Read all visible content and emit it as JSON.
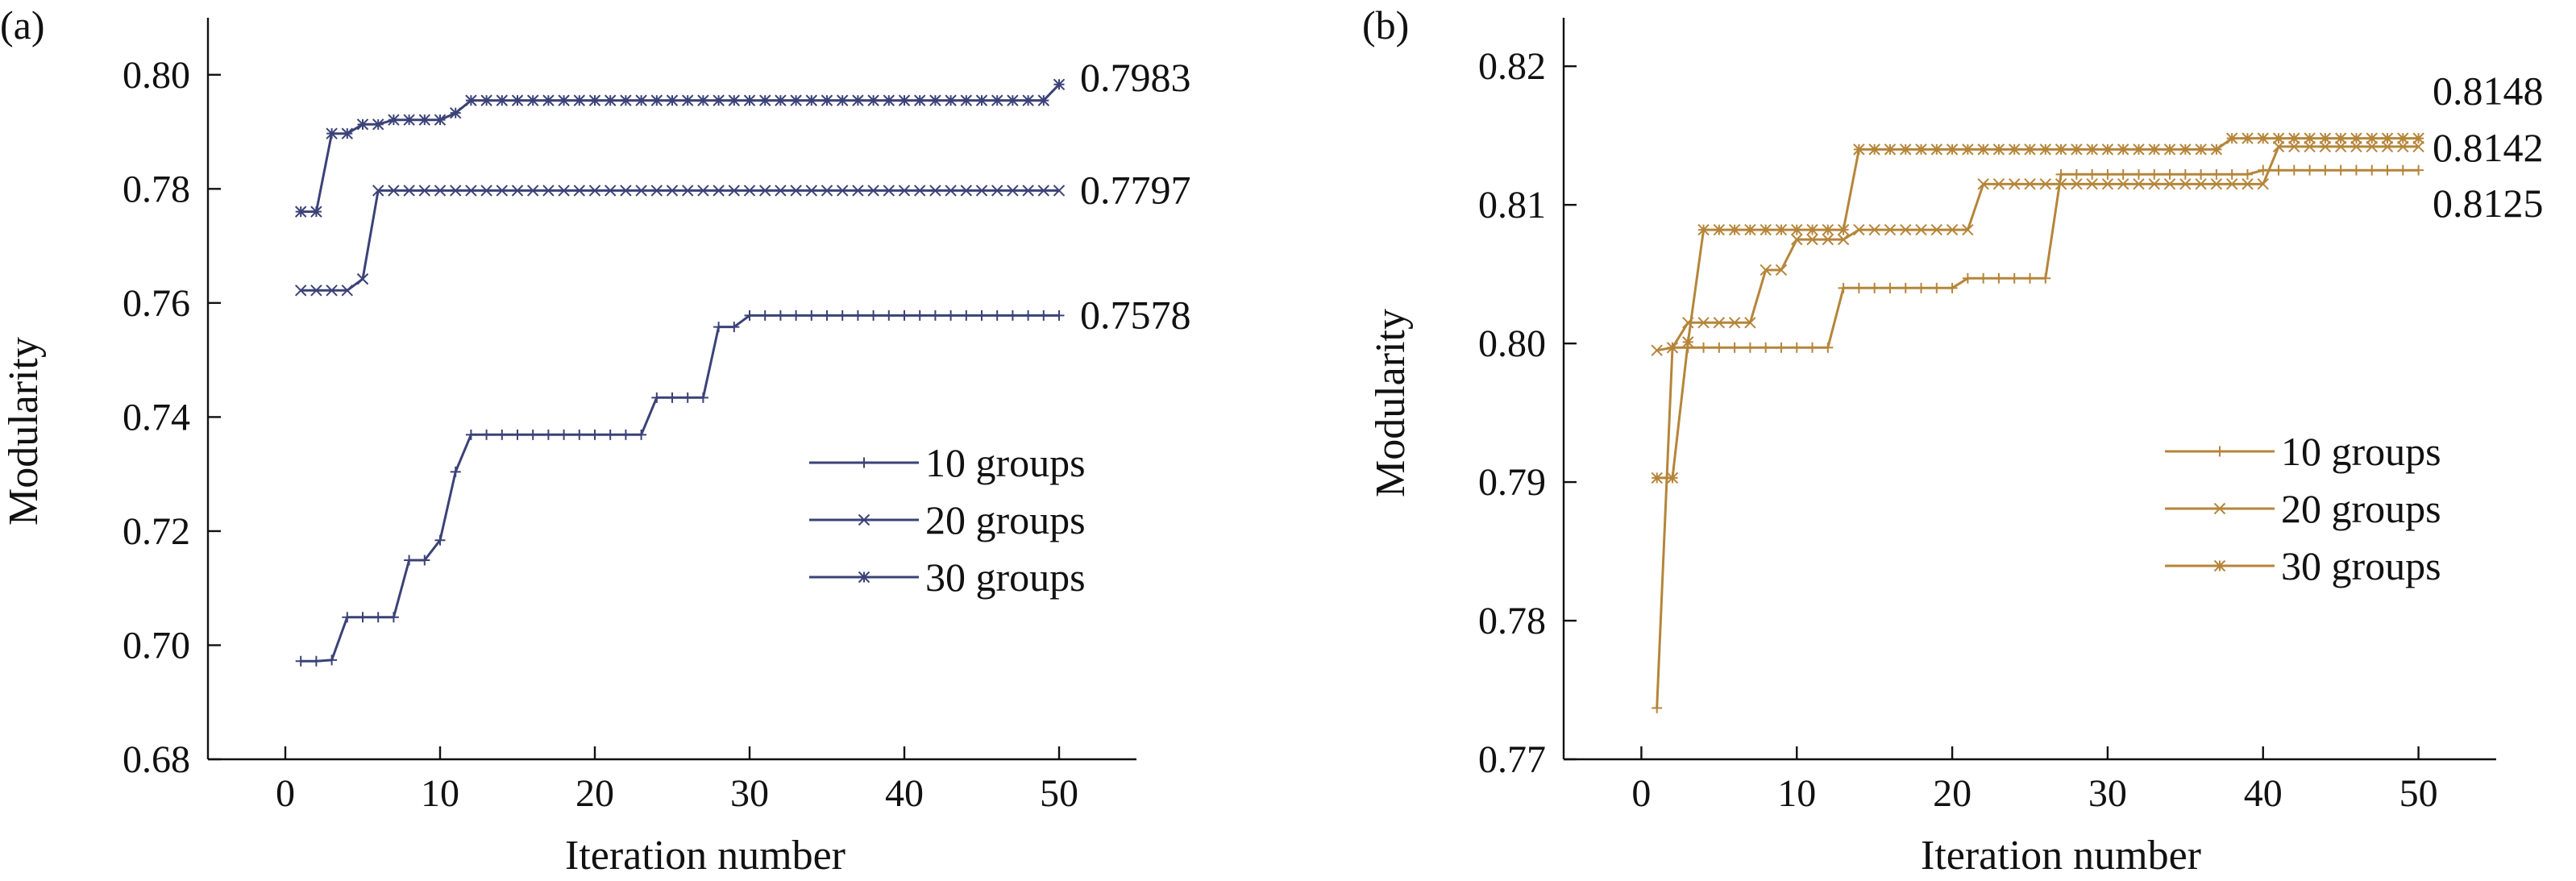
{
  "chart_data": [
    {
      "panel_label": "(a)",
      "type": "line",
      "xlabel": "Iteration number",
      "ylabel": "Modularity",
      "xlim": [
        -5,
        55
      ],
      "ylim": [
        0.68,
        0.81
      ],
      "xticks": [
        0,
        10,
        20,
        30,
        40,
        50
      ],
      "yticks": [
        0.68,
        0.7,
        0.72,
        0.74,
        0.76,
        0.78,
        0.8
      ],
      "ytick_labels": [
        "0.68",
        "0.70",
        "0.72",
        "0.74",
        "0.76",
        "0.78",
        "0.80"
      ],
      "color": "#3b4277",
      "grid": false,
      "legend_position": "lower-right",
      "series": [
        {
          "name": "10 groups",
          "marker": "plus",
          "x": [
            1,
            2,
            3,
            4,
            5,
            6,
            7,
            8,
            9,
            10,
            11,
            12,
            13,
            14,
            15,
            16,
            17,
            18,
            19,
            20,
            21,
            22,
            23,
            24,
            25,
            26,
            27,
            28,
            29,
            30,
            31,
            32,
            33,
            34,
            35,
            36,
            37,
            38,
            39,
            40,
            41,
            42,
            43,
            44,
            45,
            46,
            47,
            48,
            49,
            50
          ],
          "y": [
            0.6972,
            0.6972,
            0.6974,
            0.7049,
            0.7049,
            0.7049,
            0.7049,
            0.7149,
            0.7149,
            0.7184,
            0.7304,
            0.7369,
            0.7369,
            0.7369,
            0.7369,
            0.7369,
            0.7369,
            0.7369,
            0.7369,
            0.7369,
            0.7369,
            0.7369,
            0.7369,
            0.7434,
            0.7434,
            0.7434,
            0.7434,
            0.7558,
            0.7558,
            0.7578,
            0.7578,
            0.7578,
            0.7578,
            0.7578,
            0.7578,
            0.7578,
            0.7578,
            0.7578,
            0.7578,
            0.7578,
            0.7578,
            0.7578,
            0.7578,
            0.7578,
            0.7578,
            0.7578,
            0.7578,
            0.7578,
            0.7578,
            0.7578
          ]
        },
        {
          "name": "20 groups",
          "marker": "x",
          "x": [
            1,
            2,
            3,
            4,
            5,
            6,
            7,
            8,
            9,
            10,
            11,
            12,
            13,
            14,
            15,
            16,
            17,
            18,
            19,
            20,
            21,
            22,
            23,
            24,
            25,
            26,
            27,
            28,
            29,
            30,
            31,
            32,
            33,
            34,
            35,
            36,
            37,
            38,
            39,
            40,
            41,
            42,
            43,
            44,
            45,
            46,
            47,
            48,
            49,
            50
          ],
          "y": [
            0.7622,
            0.7622,
            0.7622,
            0.7622,
            0.7642,
            0.7797,
            0.7797,
            0.7797,
            0.7797,
            0.7797,
            0.7797,
            0.7797,
            0.7797,
            0.7797,
            0.7797,
            0.7797,
            0.7797,
            0.7797,
            0.7797,
            0.7797,
            0.7797,
            0.7797,
            0.7797,
            0.7797,
            0.7797,
            0.7797,
            0.7797,
            0.7797,
            0.7797,
            0.7797,
            0.7797,
            0.7797,
            0.7797,
            0.7797,
            0.7797,
            0.7797,
            0.7797,
            0.7797,
            0.7797,
            0.7797,
            0.7797,
            0.7797,
            0.7797,
            0.7797,
            0.7797,
            0.7797,
            0.7797,
            0.7797,
            0.7797,
            0.7797
          ]
        },
        {
          "name": "30 groups",
          "marker": "star",
          "x": [
            1,
            2,
            3,
            4,
            5,
            6,
            7,
            8,
            9,
            10,
            11,
            12,
            13,
            14,
            15,
            16,
            17,
            18,
            19,
            20,
            21,
            22,
            23,
            24,
            25,
            26,
            27,
            28,
            29,
            30,
            31,
            32,
            33,
            34,
            35,
            36,
            37,
            38,
            39,
            40,
            41,
            42,
            43,
            44,
            45,
            46,
            47,
            48,
            49,
            50
          ],
          "y": [
            0.776,
            0.776,
            0.7897,
            0.7897,
            0.7913,
            0.7913,
            0.7921,
            0.7921,
            0.7921,
            0.7921,
            0.7933,
            0.7955,
            0.7955,
            0.7955,
            0.7955,
            0.7955,
            0.7955,
            0.7955,
            0.7955,
            0.7955,
            0.7955,
            0.7955,
            0.7955,
            0.7955,
            0.7955,
            0.7955,
            0.7955,
            0.7955,
            0.7955,
            0.7955,
            0.7955,
            0.7955,
            0.7955,
            0.7955,
            0.7955,
            0.7955,
            0.7955,
            0.7955,
            0.7955,
            0.7955,
            0.7955,
            0.7955,
            0.7955,
            0.7955,
            0.7955,
            0.7955,
            0.7955,
            0.7955,
            0.7955,
            0.7983
          ]
        }
      ],
      "annotations": [
        {
          "text": "0.7983",
          "series": 2
        },
        {
          "text": "0.7797",
          "series": 1
        },
        {
          "text": "0.7578",
          "series": 0
        }
      ]
    },
    {
      "panel_label": "(b)",
      "type": "line",
      "xlabel": "Iteration number",
      "ylabel": "Modularity",
      "xlim": [
        -5,
        55
      ],
      "ylim": [
        0.77,
        0.8235
      ],
      "xticks": [
        0,
        10,
        20,
        30,
        40,
        50
      ],
      "yticks": [
        0.77,
        0.78,
        0.79,
        0.8,
        0.81,
        0.82
      ],
      "ytick_labels": [
        "0.77",
        "0.78",
        "0.79",
        "0.80",
        "0.81",
        "0.82"
      ],
      "color": "#b5853a",
      "grid": false,
      "legend_position": "lower-right",
      "series": [
        {
          "name": "10 groups",
          "marker": "plus",
          "x": [
            1,
            2,
            3,
            4,
            5,
            6,
            7,
            8,
            9,
            10,
            11,
            12,
            13,
            14,
            15,
            16,
            17,
            18,
            19,
            20,
            21,
            22,
            23,
            24,
            25,
            26,
            27,
            28,
            29,
            30,
            31,
            32,
            33,
            34,
            35,
            36,
            37,
            38,
            39,
            40,
            41,
            42,
            43,
            44,
            45,
            46,
            47,
            48,
            49,
            50
          ],
          "y": [
            0.7737,
            0.7997,
            0.7997,
            0.7997,
            0.7997,
            0.7997,
            0.7997,
            0.7997,
            0.7997,
            0.7997,
            0.7997,
            0.7997,
            0.804,
            0.804,
            0.804,
            0.804,
            0.804,
            0.804,
            0.804,
            0.804,
            0.8047,
            0.8047,
            0.8047,
            0.8047,
            0.8047,
            0.8047,
            0.8122,
            0.8122,
            0.8122,
            0.8122,
            0.8122,
            0.8122,
            0.8122,
            0.8122,
            0.8122,
            0.8122,
            0.8122,
            0.8122,
            0.8122,
            0.8125,
            0.8125,
            0.8125,
            0.8125,
            0.8125,
            0.8125,
            0.8125,
            0.8125,
            0.8125,
            0.8125,
            0.8125
          ]
        },
        {
          "name": "20 groups",
          "marker": "x",
          "x": [
            1,
            2,
            3,
            4,
            5,
            6,
            7,
            8,
            9,
            10,
            11,
            12,
            13,
            14,
            15,
            16,
            17,
            18,
            19,
            20,
            21,
            22,
            23,
            24,
            25,
            26,
            27,
            28,
            29,
            30,
            31,
            32,
            33,
            34,
            35,
            36,
            37,
            38,
            39,
            40,
            41,
            42,
            43,
            44,
            45,
            46,
            47,
            48,
            49,
            50
          ],
          "y": [
            0.7995,
            0.7997,
            0.8015,
            0.8015,
            0.8015,
            0.8015,
            0.8015,
            0.8053,
            0.8053,
            0.8075,
            0.8075,
            0.8075,
            0.8075,
            0.8082,
            0.8082,
            0.8082,
            0.8082,
            0.8082,
            0.8082,
            0.8082,
            0.8082,
            0.8115,
            0.8115,
            0.8115,
            0.8115,
            0.8115,
            0.8115,
            0.8115,
            0.8115,
            0.8115,
            0.8115,
            0.8115,
            0.8115,
            0.8115,
            0.8115,
            0.8115,
            0.8115,
            0.8115,
            0.8115,
            0.8115,
            0.8142,
            0.8142,
            0.8142,
            0.8142,
            0.8142,
            0.8142,
            0.8142,
            0.8142,
            0.8142,
            0.8142
          ]
        },
        {
          "name": "30 groups",
          "marker": "star",
          "x": [
            1,
            2,
            3,
            4,
            5,
            6,
            7,
            8,
            9,
            10,
            11,
            12,
            13,
            14,
            15,
            16,
            17,
            18,
            19,
            20,
            21,
            22,
            23,
            24,
            25,
            26,
            27,
            28,
            29,
            30,
            31,
            32,
            33,
            34,
            35,
            36,
            37,
            38,
            39,
            40,
            41,
            42,
            43,
            44,
            45,
            46,
            47,
            48,
            49,
            50
          ],
          "y": [
            0.7903,
            0.7903,
            0.8001,
            0.8082,
            0.8082,
            0.8082,
            0.8082,
            0.8082,
            0.8082,
            0.8082,
            0.8082,
            0.8082,
            0.8082,
            0.814,
            0.814,
            0.814,
            0.814,
            0.814,
            0.814,
            0.814,
            0.814,
            0.814,
            0.814,
            0.814,
            0.814,
            0.814,
            0.814,
            0.814,
            0.814,
            0.814,
            0.814,
            0.814,
            0.814,
            0.814,
            0.814,
            0.814,
            0.814,
            0.8148,
            0.8148,
            0.8148,
            0.8148,
            0.8148,
            0.8148,
            0.8148,
            0.8148,
            0.8148,
            0.8148,
            0.8148,
            0.8148,
            0.8148
          ]
        }
      ],
      "annotations": [
        {
          "text": "0.8148",
          "series": 2
        },
        {
          "text": "0.8142",
          "series": 1
        },
        {
          "text": "0.8125",
          "series": 0
        }
      ]
    }
  ]
}
